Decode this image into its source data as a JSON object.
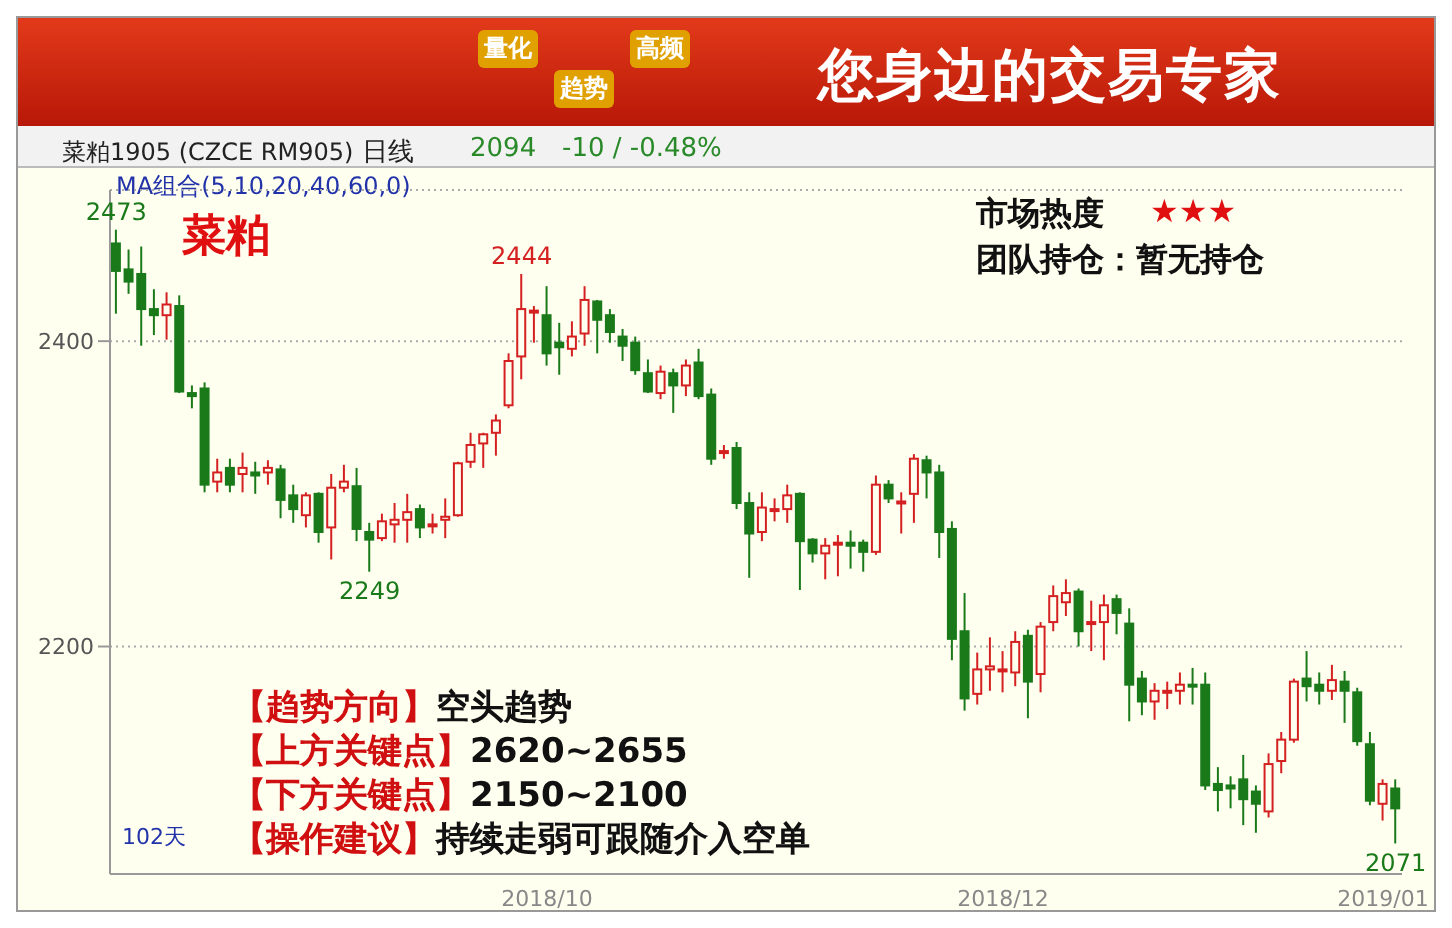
{
  "chart_data": {
    "type": "candlestick",
    "title": "菜粕",
    "subtitle": "您身边的交易专家",
    "categories": [
      null,
      null,
      null,
      null,
      null,
      null,
      null,
      null,
      null,
      null,
      null,
      null,
      null,
      null,
      null,
      null,
      null,
      null,
      null,
      null,
      null,
      null,
      null,
      null,
      null,
      null,
      null,
      null,
      null,
      null,
      null,
      null,
      null,
      null,
      "2018/10",
      null,
      null,
      null,
      null,
      null,
      null,
      null,
      null,
      null,
      null,
      null,
      null,
      null,
      null,
      null,
      null,
      null,
      null,
      null,
      null,
      null,
      null,
      null,
      null,
      null,
      null,
      null,
      null,
      null,
      null,
      null,
      null,
      null,
      null,
      null,
      "2018/12",
      null,
      null,
      null,
      null,
      null,
      null,
      null,
      null,
      null,
      null,
      null,
      null,
      null,
      null,
      null,
      null,
      null,
      null,
      null,
      null,
      null,
      null,
      null,
      null,
      null,
      null,
      null,
      null,
      null,
      "2019/01",
      null
    ],
    "ohlc": [
      [
        2464,
        2473,
        2418,
        2446
      ],
      [
        2447,
        2460,
        2431,
        2439
      ],
      [
        2444,
        2462,
        2397,
        2421
      ],
      [
        2421,
        2434,
        2404,
        2417
      ],
      [
        2417,
        2432,
        2401,
        2424
      ],
      [
        2423,
        2430,
        2366,
        2367
      ],
      [
        2366,
        2371,
        2356,
        2364
      ],
      [
        2369,
        2373,
        2301,
        2306
      ],
      [
        2308,
        2323,
        2301,
        2314
      ],
      [
        2317,
        2323,
        2301,
        2306
      ],
      [
        2313,
        2327,
        2301,
        2317
      ],
      [
        2314,
        2321,
        2300,
        2312
      ],
      [
        2314,
        2322,
        2306,
        2317
      ],
      [
        2316,
        2319,
        2284,
        2296
      ],
      [
        2299,
        2306,
        2281,
        2290
      ],
      [
        2286,
        2301,
        2278,
        2299
      ],
      [
        2300,
        2301,
        2268,
        2275
      ],
      [
        2278,
        2313,
        2257,
        2304
      ],
      [
        2304,
        2319,
        2301,
        2308
      ],
      [
        2305,
        2317,
        2269,
        2277
      ],
      [
        2275,
        2281,
        2249,
        2270
      ],
      [
        2271,
        2287,
        2269,
        2282
      ],
      [
        2280,
        2294,
        2268,
        2283
      ],
      [
        2283,
        2300,
        2268,
        2288
      ],
      [
        2290,
        2293,
        2271,
        2278
      ],
      [
        2279,
        2287,
        2274,
        2280
      ],
      [
        2283,
        2297,
        2271,
        2285
      ],
      [
        2286,
        2321,
        2285,
        2320
      ],
      [
        2321,
        2340,
        2317,
        2332
      ],
      [
        2333,
        2340,
        2317,
        2339
      ],
      [
        2340,
        2352,
        2325,
        2348
      ],
      [
        2358,
        2392,
        2356,
        2387
      ],
      [
        2390,
        2444,
        2375,
        2421
      ],
      [
        2419,
        2423,
        2399,
        2420
      ],
      [
        2417,
        2436,
        2384,
        2392
      ],
      [
        2399,
        2412,
        2378,
        2396
      ],
      [
        2395,
        2413,
        2390,
        2403
      ],
      [
        2405,
        2436,
        2397,
        2427
      ],
      [
        2426,
        2427,
        2392,
        2414
      ],
      [
        2417,
        2421,
        2399,
        2406
      ],
      [
        2403,
        2408,
        2387,
        2397
      ],
      [
        2399,
        2403,
        2378,
        2381
      ],
      [
        2379,
        2388,
        2366,
        2367
      ],
      [
        2366,
        2384,
        2362,
        2380
      ],
      [
        2379,
        2382,
        2353,
        2371
      ],
      [
        2371,
        2388,
        2364,
        2384
      ],
      [
        2386,
        2395,
        2362,
        2364
      ],
      [
        2365,
        2369,
        2319,
        2323
      ],
      [
        2327,
        2332,
        2323,
        2328
      ],
      [
        2330,
        2334,
        2290,
        2294
      ],
      [
        2294,
        2301,
        2245,
        2274
      ],
      [
        2275,
        2301,
        2269,
        2291
      ],
      [
        2289,
        2297,
        2282,
        2290
      ],
      [
        2290,
        2306,
        2281,
        2299
      ],
      [
        2300,
        2301,
        2237,
        2269
      ],
      [
        2270,
        2271,
        2255,
        2261
      ],
      [
        2261,
        2271,
        2244,
        2266
      ],
      [
        2267,
        2273,
        2246,
        2268
      ],
      [
        2268,
        2276,
        2251,
        2266
      ],
      [
        2268,
        2270,
        2249,
        2262
      ],
      [
        2262,
        2312,
        2260,
        2306
      ],
      [
        2306,
        2309,
        2294,
        2297
      ],
      [
        2294,
        2301,
        2274,
        2295
      ],
      [
        2300,
        2326,
        2281,
        2323
      ],
      [
        2322,
        2325,
        2297,
        2314
      ],
      [
        2314,
        2319,
        2258,
        2275
      ],
      [
        2277,
        2282,
        2191,
        2205
      ],
      [
        2210,
        2235,
        2158,
        2166
      ],
      [
        2169,
        2196,
        2162,
        2185
      ],
      [
        2185,
        2206,
        2171,
        2187
      ],
      [
        2184,
        2197,
        2170,
        2185
      ],
      [
        2183,
        2210,
        2174,
        2203
      ],
      [
        2207,
        2211,
        2153,
        2177
      ],
      [
        2182,
        2216,
        2170,
        2213
      ],
      [
        2216,
        2240,
        2210,
        2233
      ],
      [
        2229,
        2244,
        2220,
        2235
      ],
      [
        2236,
        2238,
        2200,
        2210
      ],
      [
        2215,
        2230,
        2197,
        2216
      ],
      [
        2216,
        2234,
        2191,
        2227
      ],
      [
        2231,
        2234,
        2208,
        2222
      ],
      [
        2215,
        2225,
        2151,
        2175
      ],
      [
        2179,
        2184,
        2155,
        2164
      ],
      [
        2164,
        2176,
        2152,
        2171
      ],
      [
        2170,
        2177,
        2159,
        2171
      ],
      [
        2171,
        2183,
        2162,
        2175
      ],
      [
        2175,
        2186,
        2162,
        2174
      ],
      [
        2175,
        2183,
        2106,
        2109
      ],
      [
        2110,
        2121,
        2092,
        2106
      ],
      [
        2109,
        2115,
        2094,
        2107
      ],
      [
        2113,
        2129,
        2083,
        2100
      ],
      [
        2105,
        2109,
        2078,
        2097
      ],
      [
        2092,
        2130,
        2088,
        2123
      ],
      [
        2125,
        2144,
        2117,
        2139
      ],
      [
        2139,
        2179,
        2137,
        2177
      ],
      [
        2179,
        2197,
        2164,
        2174
      ],
      [
        2175,
        2183,
        2162,
        2171
      ],
      [
        2171,
        2188,
        2165,
        2178
      ],
      [
        2177,
        2184,
        2150,
        2171
      ],
      [
        2170,
        2173,
        2135,
        2138
      ],
      [
        2136,
        2144,
        2096,
        2099
      ],
      [
        2097,
        2113,
        2086,
        2110
      ],
      [
        2107,
        2113,
        2071,
        2094
      ]
    ],
    "colors": [
      "#1a7a1a",
      "#1a7a1a",
      "#1a7a1a",
      "#1a7a1a",
      "#d42020",
      "#1a7a1a",
      "#1a7a1a",
      "#1a7a1a",
      "#d42020",
      "#1a7a1a",
      "#d42020",
      "#1a7a1a",
      "#d42020",
      "#1a7a1a",
      "#1a7a1a",
      "#d42020",
      "#1a7a1a",
      "#d42020",
      "#d42020",
      "#1a7a1a",
      "#1a7a1a",
      "#d42020",
      "#d42020",
      "#d42020",
      "#1a7a1a",
      "#d42020",
      "#d42020",
      "#d42020",
      "#d42020",
      "#d42020",
      "#d42020",
      "#d42020",
      "#d42020",
      "#d42020",
      "#1a7a1a",
      "#1a7a1a",
      "#d42020",
      "#d42020",
      "#1a7a1a",
      "#1a7a1a",
      "#1a7a1a",
      "#1a7a1a",
      "#1a7a1a",
      "#d42020",
      "#1a7a1a",
      "#d42020",
      "#1a7a1a",
      "#1a7a1a",
      "#d42020",
      "#1a7a1a",
      "#1a7a1a",
      "#d42020",
      "#d42020",
      "#d42020",
      "#1a7a1a",
      "#1a7a1a",
      "#d42020",
      "#d42020",
      "#1a7a1a",
      "#1a7a1a",
      "#d42020",
      "#1a7a1a",
      "#d42020",
      "#d42020",
      "#1a7a1a",
      "#1a7a1a",
      "#1a7a1a",
      "#1a7a1a",
      "#d42020",
      "#d42020",
      "#d42020",
      "#d42020",
      "#1a7a1a",
      "#d42020",
      "#d42020",
      "#d42020",
      "#1a7a1a",
      "#d42020",
      "#d42020",
      "#1a7a1a",
      "#1a7a1a",
      "#1a7a1a",
      "#d42020",
      "#d42020",
      "#d42020",
      "#1a7a1a",
      "#1a7a1a",
      "#1a7a1a",
      "#1a7a1a",
      "#1a7a1a",
      "#1a7a1a",
      "#d42020",
      "#d42020",
      "#d42020",
      "#1a7a1a",
      "#1a7a1a",
      "#d42020",
      "#1a7a1a",
      "#1a7a1a",
      "#1a7a1a",
      "#d42020",
      "#1a7a1a"
    ],
    "ylim": [
      2051,
      2499
    ],
    "yticks": [
      2400,
      2200
    ],
    "grid": "y",
    "annotations": [
      "菜粕1905 (CZCE RM905)",
      "日线",
      "2094",
      "-10 / -0.48%",
      "MA组合(5,10,20,40,60,0)",
      "市场热度",
      "★★★",
      "团队持仓：暂无持仓",
      "【趋势方向】",
      "空头趋势",
      "【上方关键点】",
      "2620~2655",
      "【下方关键点】",
      "2150~2100",
      "【操作建议】",
      "持续走弱可跟随介入空单",
      "102天",
      "量化",
      "趋势",
      "高频",
      {
        "text": "2473",
        "y": 2473
      },
      {
        "text": "2444",
        "y": 2444
      },
      {
        "text": "2249",
        "y": 2249
      },
      {
        "text": "2071",
        "y": 2071
      }
    ]
  }
}
